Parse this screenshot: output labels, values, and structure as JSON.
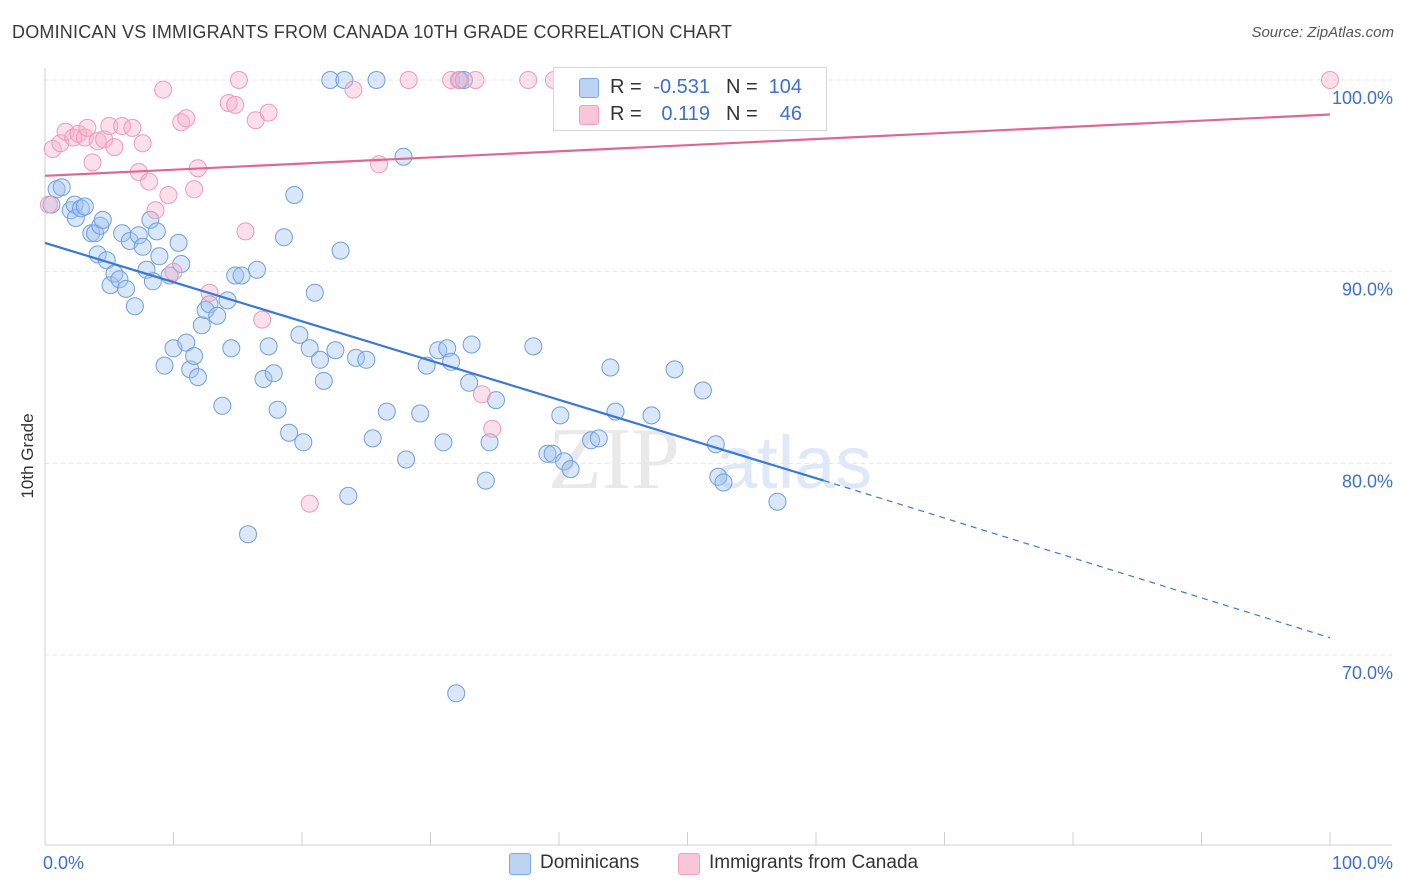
{
  "header": {
    "title": "DOMINICAN VS IMMIGRANTS FROM CANADA 10TH GRADE CORRELATION CHART",
    "source": "Source: ZipAtlas.com"
  },
  "watermark": {
    "zip": "ZIP",
    "atlas": "atlas"
  },
  "legend": {
    "rows": [
      {
        "r_label": "R =",
        "r_value": "-0.531",
        "n_label": "N =",
        "n_value": "104"
      },
      {
        "r_label": "R =",
        "r_value": "0.119",
        "n_label": "N =",
        "n_value": "46"
      }
    ]
  },
  "bottom_legend": {
    "items": [
      "Dominicans",
      "Immigrants from Canada"
    ]
  },
  "chart_data": {
    "type": "scatter",
    "title": "DOMINICAN VS IMMIGRANTS FROM CANADA 10TH GRADE CORRELATION CHART",
    "xlabel": "",
    "ylabel": "10th Grade",
    "xlim": [
      0,
      100
    ],
    "ylim": [
      59.5,
      101.5
    ],
    "x_tick_labels": [
      "0.0%",
      "100.0%"
    ],
    "y_ticks": [
      70,
      80,
      90,
      100
    ],
    "y_tick_labels": [
      "70.0%",
      "80.0%",
      "90.0%",
      "100.0%"
    ],
    "grid": true,
    "legend_position": "top-center",
    "colors": {
      "Dominicans": "#7aa8e8",
      "Dominicans_line": "#3a78d8",
      "Immigrants from Canada": "#f2a0bd",
      "Immigrants from Canada_line": "#e0678f"
    },
    "series": [
      {
        "name": "Dominicans",
        "r": -0.531,
        "n": 104,
        "trend": {
          "x": [
            0,
            60.6
          ],
          "y": [
            91.5,
            79.1
          ],
          "dashed_to": [
            100,
            70.9
          ]
        },
        "points": [
          [
            0.5,
            93.5
          ],
          [
            0.9,
            94.3
          ],
          [
            1.3,
            94.4
          ],
          [
            2.0,
            93.2
          ],
          [
            2.3,
            93.5
          ],
          [
            2.4,
            92.8
          ],
          [
            2.8,
            93.3
          ],
          [
            3.1,
            93.4
          ],
          [
            3.6,
            92.0
          ],
          [
            3.9,
            92.0
          ],
          [
            4.1,
            90.9
          ],
          [
            4.3,
            92.4
          ],
          [
            4.5,
            92.7
          ],
          [
            4.8,
            90.6
          ],
          [
            5.1,
            89.3
          ],
          [
            5.4,
            89.9
          ],
          [
            5.8,
            89.6
          ],
          [
            6.0,
            92.0
          ],
          [
            6.3,
            89.1
          ],
          [
            6.6,
            91.6
          ],
          [
            7.0,
            88.2
          ],
          [
            7.3,
            91.9
          ],
          [
            7.6,
            91.3
          ],
          [
            7.9,
            90.1
          ],
          [
            8.2,
            92.7
          ],
          [
            8.4,
            89.5
          ],
          [
            8.7,
            92.1
          ],
          [
            8.9,
            90.8
          ],
          [
            9.3,
            85.1
          ],
          [
            9.7,
            89.8
          ],
          [
            10.0,
            86.0
          ],
          [
            10.4,
            91.5
          ],
          [
            10.6,
            90.4
          ],
          [
            11.0,
            86.3
          ],
          [
            11.3,
            84.9
          ],
          [
            11.6,
            85.6
          ],
          [
            11.9,
            84.5
          ],
          [
            12.2,
            87.2
          ],
          [
            12.5,
            88.0
          ],
          [
            12.8,
            88.3
          ],
          [
            13.4,
            87.7
          ],
          [
            13.8,
            83.0
          ],
          [
            14.2,
            88.5
          ],
          [
            14.5,
            86.0
          ],
          [
            14.8,
            89.8
          ],
          [
            15.3,
            89.8
          ],
          [
            15.8,
            76.3
          ],
          [
            16.5,
            90.1
          ],
          [
            17.0,
            84.4
          ],
          [
            17.4,
            86.1
          ],
          [
            17.8,
            84.7
          ],
          [
            18.1,
            82.8
          ],
          [
            18.6,
            91.8
          ],
          [
            19.0,
            81.6
          ],
          [
            19.4,
            94.0
          ],
          [
            19.8,
            86.7
          ],
          [
            20.1,
            81.1
          ],
          [
            20.6,
            86.0
          ],
          [
            21.0,
            88.9
          ],
          [
            21.4,
            85.4
          ],
          [
            21.7,
            84.3
          ],
          [
            22.2,
            100.0
          ],
          [
            22.6,
            85.9
          ],
          [
            23.0,
            91.1
          ],
          [
            23.3,
            100.0
          ],
          [
            23.6,
            78.3
          ],
          [
            24.2,
            85.5
          ],
          [
            25.0,
            85.4
          ],
          [
            25.5,
            81.3
          ],
          [
            25.8,
            100.0
          ],
          [
            26.6,
            82.7
          ],
          [
            27.9,
            96.0
          ],
          [
            28.1,
            80.2
          ],
          [
            29.2,
            82.6
          ],
          [
            29.7,
            85.1
          ],
          [
            30.6,
            85.9
          ],
          [
            31.0,
            81.1
          ],
          [
            31.3,
            86.0
          ],
          [
            31.6,
            85.3
          ],
          [
            32.0,
            68.0
          ],
          [
            32.3,
            100.0
          ],
          [
            32.6,
            100.0
          ],
          [
            33.0,
            84.2
          ],
          [
            33.2,
            86.2
          ],
          [
            34.3,
            79.1
          ],
          [
            34.6,
            81.1
          ],
          [
            35.1,
            83.3
          ],
          [
            38.0,
            86.1
          ],
          [
            39.1,
            80.5
          ],
          [
            39.5,
            80.5
          ],
          [
            40.1,
            82.5
          ],
          [
            40.4,
            80.1
          ],
          [
            40.9,
            79.7
          ],
          [
            42.5,
            81.2
          ],
          [
            43.1,
            81.3
          ],
          [
            44.0,
            85.0
          ],
          [
            44.4,
            82.7
          ],
          [
            47.2,
            82.5
          ],
          [
            49.0,
            84.9
          ],
          [
            51.2,
            83.8
          ],
          [
            52.2,
            81.0
          ],
          [
            52.4,
            79.3
          ],
          [
            52.8,
            79.0
          ],
          [
            57.0,
            78.0
          ]
        ]
      },
      {
        "name": "Immigrants from Canada",
        "r": 0.119,
        "n": 46,
        "trend": {
          "x": [
            0,
            100
          ],
          "y": [
            95.0,
            98.2
          ]
        },
        "points": [
          [
            0.3,
            93.5
          ],
          [
            0.6,
            96.4
          ],
          [
            1.2,
            96.7
          ],
          [
            1.6,
            97.3
          ],
          [
            2.2,
            97.0
          ],
          [
            2.6,
            97.2
          ],
          [
            3.1,
            97.0
          ],
          [
            3.3,
            97.5
          ],
          [
            3.7,
            95.7
          ],
          [
            4.1,
            96.8
          ],
          [
            4.6,
            96.9
          ],
          [
            5.0,
            97.6
          ],
          [
            5.4,
            96.5
          ],
          [
            6.0,
            97.6
          ],
          [
            6.8,
            97.5
          ],
          [
            7.3,
            95.2
          ],
          [
            7.6,
            96.7
          ],
          [
            8.1,
            94.7
          ],
          [
            8.6,
            93.2
          ],
          [
            9.2,
            99.5
          ],
          [
            9.6,
            94.0
          ],
          [
            10.0,
            90.0
          ],
          [
            10.6,
            97.8
          ],
          [
            11.0,
            98.0
          ],
          [
            11.6,
            94.3
          ],
          [
            11.9,
            95.4
          ],
          [
            12.8,
            88.9
          ],
          [
            14.3,
            98.8
          ],
          [
            14.8,
            98.7
          ],
          [
            15.1,
            100.0
          ],
          [
            15.6,
            92.1
          ],
          [
            16.4,
            97.9
          ],
          [
            16.9,
            87.5
          ],
          [
            17.4,
            98.3
          ],
          [
            20.6,
            77.9
          ],
          [
            24.0,
            99.5
          ],
          [
            26.0,
            95.6
          ],
          [
            28.3,
            100.0
          ],
          [
            31.6,
            100.0
          ],
          [
            32.2,
            100.0
          ],
          [
            33.5,
            100.0
          ],
          [
            34.0,
            83.6
          ],
          [
            34.8,
            81.8
          ],
          [
            37.6,
            100.0
          ],
          [
            39.6,
            100.0
          ],
          [
            100.0,
            100.0
          ]
        ]
      }
    ]
  }
}
